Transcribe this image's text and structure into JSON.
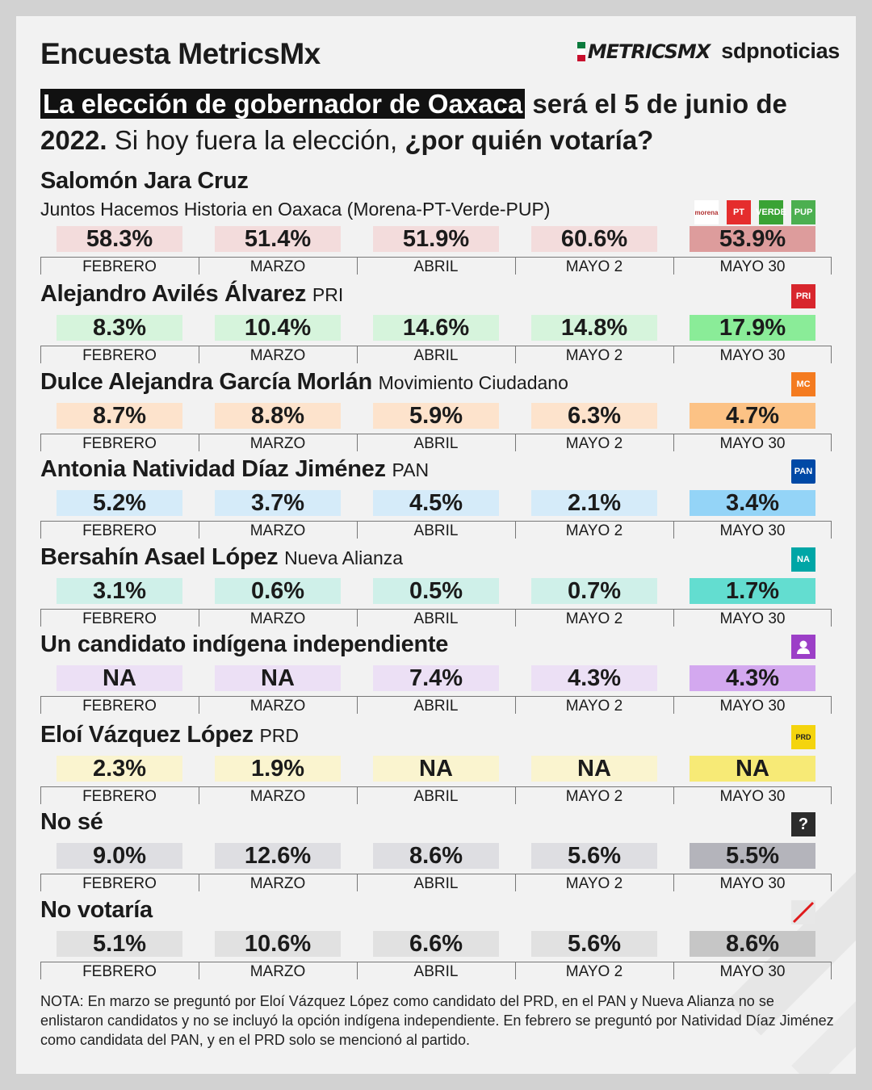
{
  "header": {
    "title": "Encuesta MetricsMx",
    "logo_metrics": "METRICSMX",
    "logo_sdp": "sdpnoticias"
  },
  "question": {
    "highlight": "La elección de gobernador de Oaxaca",
    "bold_part": "será el 5 de junio de 2022.",
    "plain_part": "Si hoy fuera la elección,",
    "bold_end": "¿por quién votaría?"
  },
  "chart_data": {
    "type": "table",
    "title": "Encuesta MetricsMx",
    "months": [
      "FEBRERO",
      "MARZO",
      "ABRIL",
      "MAYO 2",
      "MAYO 30"
    ],
    "rows": [
      {
        "name": "Salomón Jara Cruz",
        "party": "",
        "coalition": "Juntos Hacemos Historia en Oaxaca (Morena-PT-Verde-PUP)",
        "values": [
          "58.3%",
          "51.4%",
          "51.9%",
          "60.6%",
          "53.9%"
        ],
        "color_light": "#f3dcdc",
        "color_strong": "#dd9c9c"
      },
      {
        "name": "Alejandro Avilés Álvarez",
        "party": "PRI",
        "coalition": "",
        "values": [
          "8.3%",
          "10.4%",
          "14.6%",
          "14.8%",
          "17.9%"
        ],
        "color_light": "#d6f4dc",
        "color_strong": "#8aec98"
      },
      {
        "name": "Dulce Alejandra García Morlán",
        "party": "Movimiento Ciudadano",
        "coalition": "",
        "values": [
          "8.7%",
          "8.8%",
          "5.9%",
          "6.3%",
          "4.7%"
        ],
        "color_light": "#fde3cc",
        "color_strong": "#fcc285"
      },
      {
        "name": "Antonia Natividad Díaz Jiménez",
        "party": "PAN",
        "coalition": "",
        "values": [
          "5.2%",
          "3.7%",
          "4.5%",
          "2.1%",
          "3.4%"
        ],
        "color_light": "#d5ebf9",
        "color_strong": "#94d4f7"
      },
      {
        "name": "Bersahín Asael López",
        "party": "Nueva Alianza",
        "coalition": "",
        "values": [
          "3.1%",
          "0.6%",
          "0.5%",
          "0.7%",
          "1.7%"
        ],
        "color_light": "#cff0e9",
        "color_strong": "#63ddd0"
      },
      {
        "name": "Un candidato indígena independiente",
        "party": "",
        "coalition": "",
        "values": [
          "NA",
          "NA",
          "7.4%",
          "4.3%",
          "4.3%"
        ],
        "color_light": "#ece0f5",
        "color_strong": "#d3a8ef"
      },
      {
        "name": "Eloí Vázquez López",
        "party": "PRD",
        "coalition": "",
        "values": [
          "2.3%",
          "1.9%",
          "NA",
          "NA",
          "NA"
        ],
        "color_light": "#faf4cf",
        "color_strong": "#f7ea76"
      },
      {
        "name": "No sé",
        "party": "",
        "coalition": "",
        "values": [
          "9.0%",
          "12.6%",
          "8.6%",
          "5.6%",
          "5.5%"
        ],
        "color_light": "#dedee2",
        "color_strong": "#b4b4bb"
      },
      {
        "name": "No votaría",
        "party": "",
        "coalition": "",
        "values": [
          "5.1%",
          "10.6%",
          "6.6%",
          "5.6%",
          "8.6%"
        ],
        "color_light": "#e1e1e1",
        "color_strong": "#c6c6c6"
      }
    ]
  },
  "party_icons": {
    "row0": [
      {
        "name": "morena-logo",
        "text": "morena",
        "color": "#b03030"
      },
      {
        "name": "pt-logo",
        "text": "PT",
        "color": "#e52d2d"
      },
      {
        "name": "verde-logo",
        "text": "VERDE",
        "color": "#3aa335"
      },
      {
        "name": "pup-logo",
        "text": "PUP",
        "color": "#4caf50"
      }
    ],
    "row1": [
      {
        "name": "pri-logo",
        "text": "PRI",
        "color": "#d8262d"
      }
    ],
    "row2": [
      {
        "name": "mc-logo",
        "text": "MC",
        "color": "#f47b20"
      }
    ],
    "row3": [
      {
        "name": "pan-logo",
        "text": "PAN",
        "color": "#0049a6"
      }
    ],
    "row4": [
      {
        "name": "nueva-alianza-logo",
        "text": "NA",
        "color": "#00a6a6"
      }
    ],
    "row5": [
      {
        "name": "person-icon",
        "text": "",
        "color": "#9c3fc7"
      }
    ],
    "row6": [
      {
        "name": "prd-logo",
        "text": "PRD",
        "color": "#f4d40e"
      }
    ],
    "row7": [
      {
        "name": "question-icon",
        "text": "?",
        "color": "#2c2c2c"
      }
    ],
    "row8": [
      {
        "name": "slash-icon",
        "text": "",
        "color": "#e7e7e7"
      }
    ]
  },
  "note": "NOTA: En marzo se preguntó por Eloí Vázquez López como candidato del PRD, en el PAN y Nueva Alianza no se enlistaron candidatos y no se incluyó la opción indígena independiente. En febrero se preguntó por Natividad Díaz Jiménez como candidata del PAN, y en el PRD solo se mencionó al partido."
}
